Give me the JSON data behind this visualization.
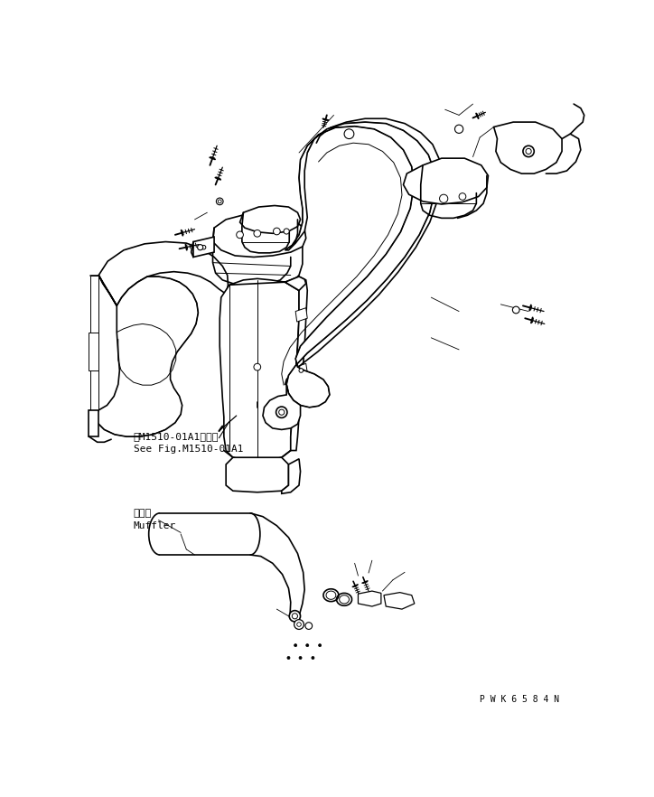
{
  "background_color": "#ffffff",
  "line_color": "#000000",
  "lw_main": 1.2,
  "lw_thin": 0.7,
  "lw_leader": 0.6,
  "text_color": "#000000",
  "watermark": "P W K 6 5 8 4 N",
  "watermark_fontsize": 7,
  "label_jp1": "第M1510-01A1図参照",
  "label_en1": "See Fig.M1510-01A1",
  "label_jp2": "マフラ",
  "label_en2": "Muffler"
}
